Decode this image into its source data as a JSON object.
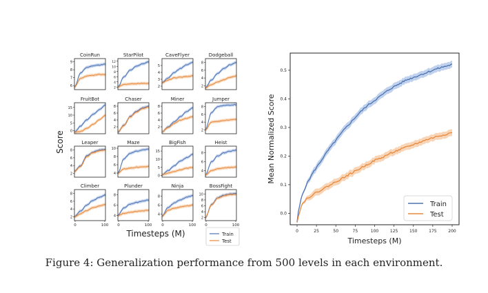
{
  "caption": "Figure 4: Generalization performance from 500 levels in each environment.",
  "colors": {
    "train": "#4c72b0",
    "test": "#e8883a",
    "train_band": "#a9c1e6",
    "test_band": "#f5c79f"
  },
  "small_grid": {
    "ylabel": "Score",
    "xlabel": "Timesteps (M)",
    "legend": [
      "Train",
      "Test"
    ]
  },
  "chart_data": [
    {
      "type": "line",
      "title": "CoinRun",
      "x_ticks": [],
      "y_ticks": [
        "6",
        "7",
        "8",
        "9"
      ],
      "ylim": [
        5.5,
        9.4
      ],
      "train": [
        5.8,
        7.6,
        8.3,
        8.5,
        8.6,
        8.7
      ],
      "test": [
        5.8,
        6.9,
        7.2,
        7.3,
        7.4,
        7.4
      ]
    },
    {
      "type": "line",
      "title": "StarPilot",
      "x_ticks": [],
      "y_ticks": [
        "2",
        "4",
        "6",
        "8",
        "10",
        "12"
      ],
      "ylim": [
        1,
        13
      ],
      "train": [
        2.0,
        6.0,
        8.5,
        10.0,
        11.0,
        11.8
      ],
      "test": [
        2.0,
        3.0,
        3.2,
        3.3,
        3.4,
        3.4
      ]
    },
    {
      "type": "line",
      "title": "CaveFlyer",
      "x_ticks": [],
      "y_ticks": [
        "2",
        "3",
        "4",
        "5"
      ],
      "ylim": [
        1.5,
        6
      ],
      "train": [
        2.5,
        3.2,
        4.0,
        4.6,
        5.1,
        5.5
      ],
      "test": [
        2.5,
        2.9,
        3.2,
        3.3,
        3.4,
        3.5
      ]
    },
    {
      "type": "line",
      "title": "Dodgeball",
      "x_ticks": [],
      "y_ticks": [
        "2",
        "4",
        "6",
        "8"
      ],
      "ylim": [
        1,
        9
      ],
      "train": [
        1.5,
        3.5,
        5.2,
        6.5,
        7.4,
        8.0
      ],
      "test": [
        1.5,
        2.3,
        3.0,
        3.6,
        4.2,
        4.5
      ]
    },
    {
      "type": "line",
      "title": "FruitBot",
      "x_ticks": [],
      "y_ticks": [
        "0",
        "5",
        "10",
        "15"
      ],
      "ylim": [
        -2,
        18
      ],
      "train": [
        -1,
        3,
        7,
        10.5,
        13.5,
        16.5
      ],
      "test": [
        -1,
        -0.5,
        1.5,
        4,
        7,
        10
      ]
    },
    {
      "type": "line",
      "title": "Chaser",
      "x_ticks": [],
      "y_ticks": [
        "2",
        "4",
        "6",
        "8"
      ],
      "ylim": [
        0,
        9
      ],
      "train": [
        0.5,
        2.5,
        5,
        6.5,
        7.5,
        8.0
      ],
      "test": [
        0.5,
        2.4,
        4.9,
        6.3,
        7.3,
        7.8
      ]
    },
    {
      "type": "line",
      "title": "Miner",
      "x_ticks": [],
      "y_ticks": [
        "2",
        "4",
        "6",
        "8"
      ],
      "ylim": [
        0,
        9
      ],
      "train": [
        0.5,
        2.0,
        3.5,
        5,
        6.5,
        7.5
      ],
      "test": [
        0.5,
        1.8,
        3.0,
        4,
        4.5,
        5
      ]
    },
    {
      "type": "line",
      "title": "Jumper",
      "x_ticks": [],
      "y_ticks": [
        "2",
        "4",
        "6",
        "8"
      ],
      "ylim": [
        1,
        9
      ],
      "train": [
        2,
        6.5,
        8,
        8.3,
        8.4,
        8.5
      ],
      "test": [
        2,
        4.0,
        4.2,
        4.4,
        4.6,
        4.7
      ]
    },
    {
      "type": "line",
      "title": "Leaper",
      "x_ticks": [],
      "y_ticks": [
        "2",
        "4",
        "6",
        "8"
      ],
      "ylim": [
        1,
        9
      ],
      "train": [
        2.5,
        4,
        6.5,
        7.5,
        8.0,
        8.2
      ],
      "test": [
        2.5,
        3.8,
        6.3,
        7.3,
        7.8,
        8.0
      ]
    },
    {
      "type": "line",
      "title": "Maze",
      "x_ticks": [],
      "y_ticks": [
        "4",
        "6",
        "8",
        "10"
      ],
      "ylim": [
        3,
        10.5
      ],
      "train": [
        4,
        7.5,
        8.8,
        9.3,
        9.6,
        9.8
      ],
      "test": [
        4,
        5.0,
        5.2,
        5.4,
        5.5,
        5.6
      ]
    },
    {
      "type": "line",
      "title": "BigFish",
      "x_ticks": [],
      "y_ticks": [
        "0",
        "5",
        "10",
        "15"
      ],
      "ylim": [
        -1,
        18
      ],
      "train": [
        0.5,
        3,
        6,
        9,
        11,
        13
      ],
      "test": [
        0.5,
        1.5,
        2.5,
        3.5,
        4.5,
        5
      ]
    },
    {
      "type": "line",
      "title": "Heist",
      "x_ticks": [],
      "y_ticks": [
        "4",
        "6",
        "8"
      ],
      "ylim": [
        2.5,
        9.5
      ],
      "train": [
        3,
        6,
        7.3,
        8,
        8.4,
        8.6
      ],
      "test": [
        3,
        4.0,
        4.4,
        4.6,
        4.7,
        4.8
      ]
    },
    {
      "type": "line",
      "title": "Climber",
      "x_ticks": [
        "0",
        "100"
      ],
      "y_ticks": [
        "2",
        "4",
        "6",
        "8"
      ],
      "ylim": [
        1,
        9
      ],
      "train": [
        2,
        3.5,
        5.0,
        6.2,
        7.0,
        7.6
      ],
      "test": [
        2,
        2.8,
        3.6,
        4.3,
        4.8,
        5.2
      ]
    },
    {
      "type": "line",
      "title": "Plunder",
      "x_ticks": [
        "0",
        "100"
      ],
      "y_ticks": [
        "4",
        "6",
        "8"
      ],
      "ylim": [
        3,
        9
      ],
      "train": [
        4,
        5.5,
        6.2,
        6.5,
        6.8,
        7.0
      ],
      "test": [
        4,
        4.4,
        4.6,
        4.8,
        4.9,
        5.0
      ]
    },
    {
      "type": "line",
      "title": "Ninja",
      "x_ticks": [
        "0",
        "100"
      ],
      "y_ticks": [
        "4",
        "6",
        "8"
      ],
      "ylim": [
        2.5,
        9.5
      ],
      "train": [
        3.5,
        5.5,
        6.5,
        7.2,
        7.8,
        8.2
      ],
      "test": [
        3.5,
        4.8,
        5.3,
        5.6,
        5.8,
        6.0
      ]
    },
    {
      "type": "line",
      "title": "BossFight",
      "x_ticks": [
        "0",
        "100"
      ],
      "y_ticks": [
        "2",
        "4",
        "6",
        "8",
        "10"
      ],
      "ylim": [
        1,
        11.5
      ],
      "train": [
        2,
        6.5,
        8.8,
        9.6,
        10.0,
        10.2
      ],
      "test": [
        2,
        6.3,
        8.6,
        9.4,
        9.8,
        10.0
      ]
    },
    {
      "type": "line",
      "title": "",
      "xlabel": "Timesteps (M)",
      "ylabel": "Mean Normalized Score",
      "xlim": [
        0,
        200
      ],
      "ylim": [
        -0.04,
        0.56
      ],
      "x_ticks": [
        0,
        25,
        50,
        75,
        100,
        125,
        150,
        175,
        200
      ],
      "y_ticks": [
        0.0,
        0.1,
        0.2,
        0.3,
        0.4,
        0.5
      ],
      "legend": "bottom-right",
      "series": [
        {
          "name": "Train",
          "x": [
            0,
            2,
            6,
            12,
            20,
            30,
            40,
            50,
            60,
            70,
            80,
            90,
            100,
            110,
            120,
            130,
            140,
            150,
            160,
            170,
            180,
            190,
            200
          ],
          "values": [
            -0.03,
            0.01,
            0.06,
            0.1,
            0.14,
            0.18,
            0.22,
            0.255,
            0.29,
            0.32,
            0.35,
            0.375,
            0.395,
            0.415,
            0.435,
            0.45,
            0.465,
            0.475,
            0.485,
            0.495,
            0.505,
            0.513,
            0.52
          ]
        },
        {
          "name": "Test",
          "x": [
            0,
            2,
            6,
            12,
            20,
            30,
            40,
            50,
            60,
            70,
            80,
            90,
            100,
            110,
            120,
            130,
            140,
            150,
            160,
            170,
            180,
            190,
            200
          ],
          "values": [
            -0.03,
            -0.005,
            0.03,
            0.05,
            0.065,
            0.08,
            0.095,
            0.11,
            0.125,
            0.14,
            0.155,
            0.17,
            0.185,
            0.195,
            0.21,
            0.22,
            0.23,
            0.24,
            0.25,
            0.26,
            0.268,
            0.275,
            0.282
          ]
        }
      ]
    }
  ]
}
